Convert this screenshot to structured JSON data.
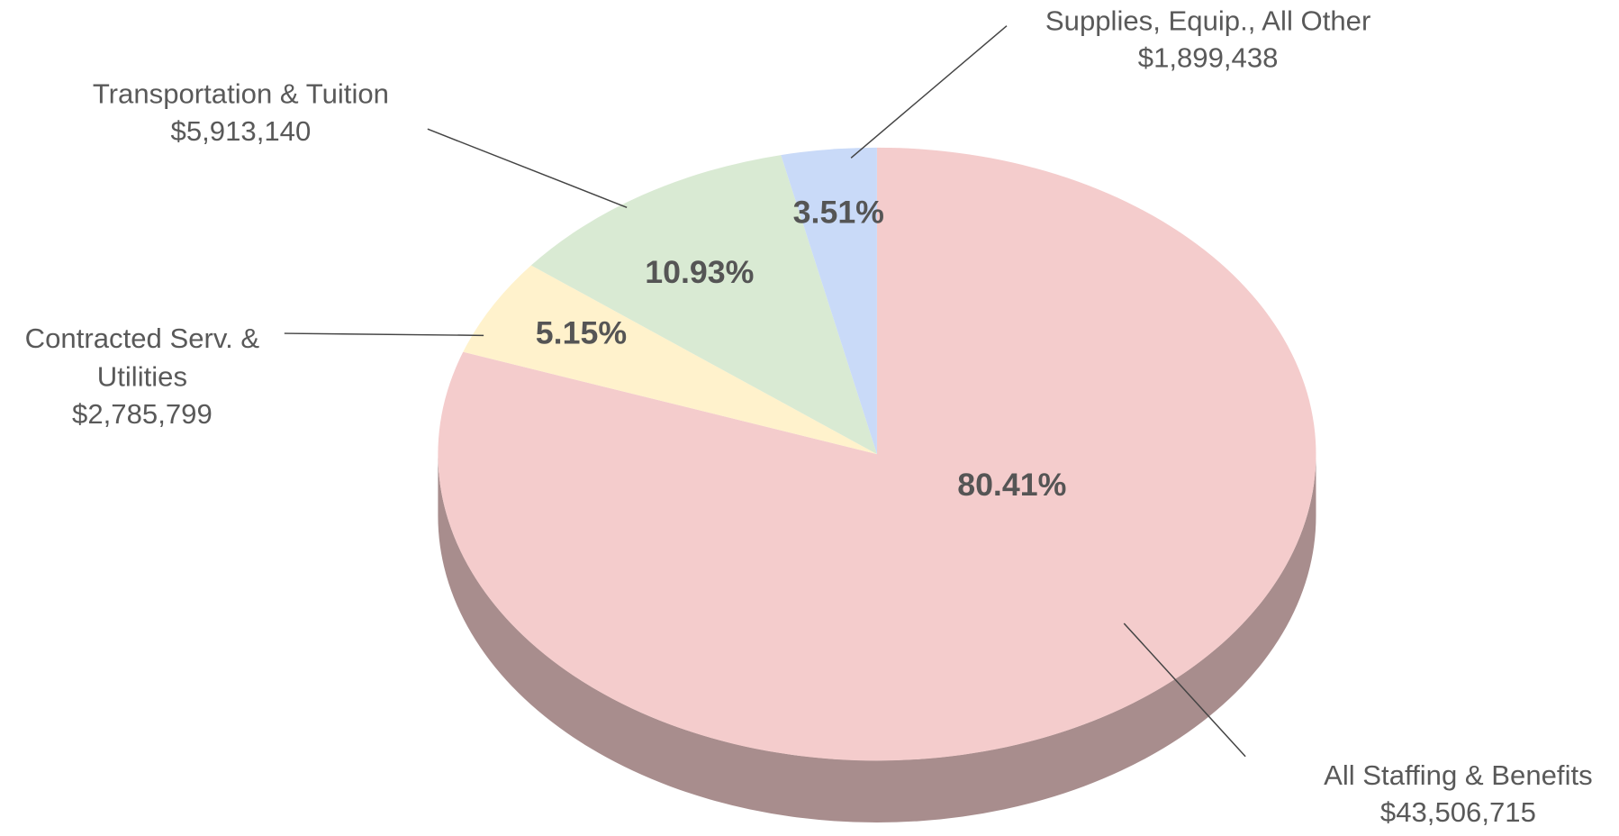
{
  "chart_data": {
    "type": "pie3d",
    "categories": [
      "All Staffing & Benefits",
      "Contracted Serv. & Utilities",
      "Transportation & Tuition",
      "Supplies, Equip., All Other"
    ],
    "values": [
      80.41,
      5.15,
      10.93,
      3.51
    ],
    "value_labels": [
      "80.41%",
      "5.15%",
      "10.93%",
      "3.51%"
    ],
    "amounts": [
      43506715,
      2785799,
      5913140,
      1899438
    ],
    "amount_labels": [
      "$43,506,715",
      "$2,785,799",
      "$5,913,140",
      "$1,899,438"
    ],
    "colors": [
      "#f4cccc",
      "#fff2cc",
      "#d9ead3",
      "#c9daf8"
    ]
  }
}
